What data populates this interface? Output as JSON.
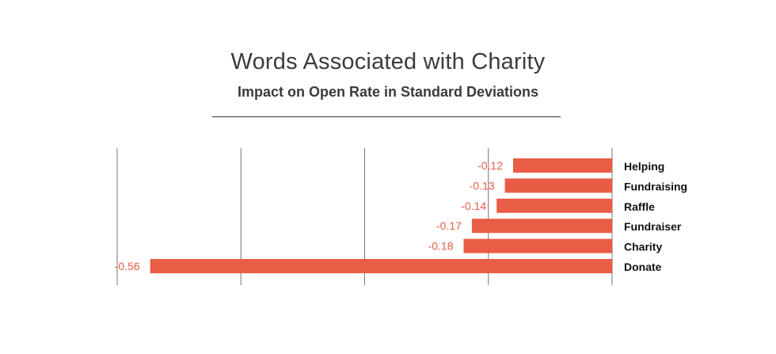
{
  "chart_data": {
    "type": "bar",
    "orientation": "horizontal",
    "title": "Words Associated with Charity",
    "subtitle": "Impact on Open Rate in Standard Deviations",
    "categories": [
      "Helping",
      "Fundraising",
      "Raffle",
      "Fundraiser",
      "Charity",
      "Donate"
    ],
    "values": [
      -0.12,
      -0.13,
      -0.14,
      -0.17,
      -0.18,
      -0.56
    ],
    "value_labels": [
      "-0.12",
      "-0.13",
      "-0.14",
      "-0.17",
      "-0.18",
      "-0.56"
    ],
    "xlim": [
      -0.6,
      0
    ],
    "gridlines": [
      -0.6,
      -0.45,
      -0.3,
      -0.15,
      0
    ],
    "grid": true,
    "legend": "none",
    "bar_color": "#e95c45",
    "label_color": "#e95c45"
  }
}
